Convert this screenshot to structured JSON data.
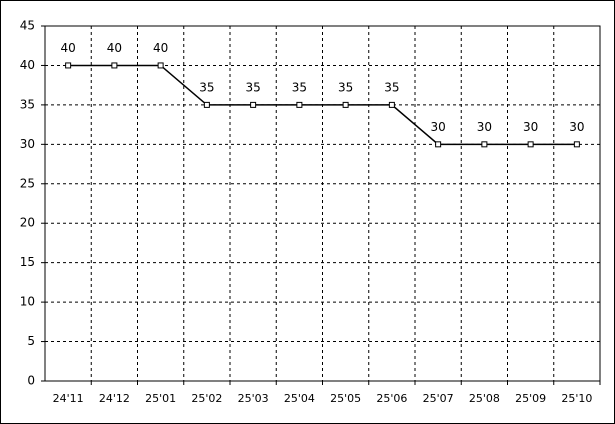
{
  "chart_data": {
    "type": "line",
    "categories": [
      "24'11",
      "24'12",
      "25'01",
      "25'02",
      "25'03",
      "25'04",
      "25'05",
      "25'06",
      "25'07",
      "25'08",
      "25'09",
      "25'10"
    ],
    "values": [
      40,
      40,
      40,
      35,
      35,
      35,
      35,
      35,
      30,
      30,
      30,
      30
    ],
    "color": "#000000",
    "ylim": [
      0,
      45
    ],
    "yticks": [
      0,
      5,
      10,
      15,
      20,
      25,
      30,
      35,
      40,
      45
    ],
    "grid": true
  }
}
